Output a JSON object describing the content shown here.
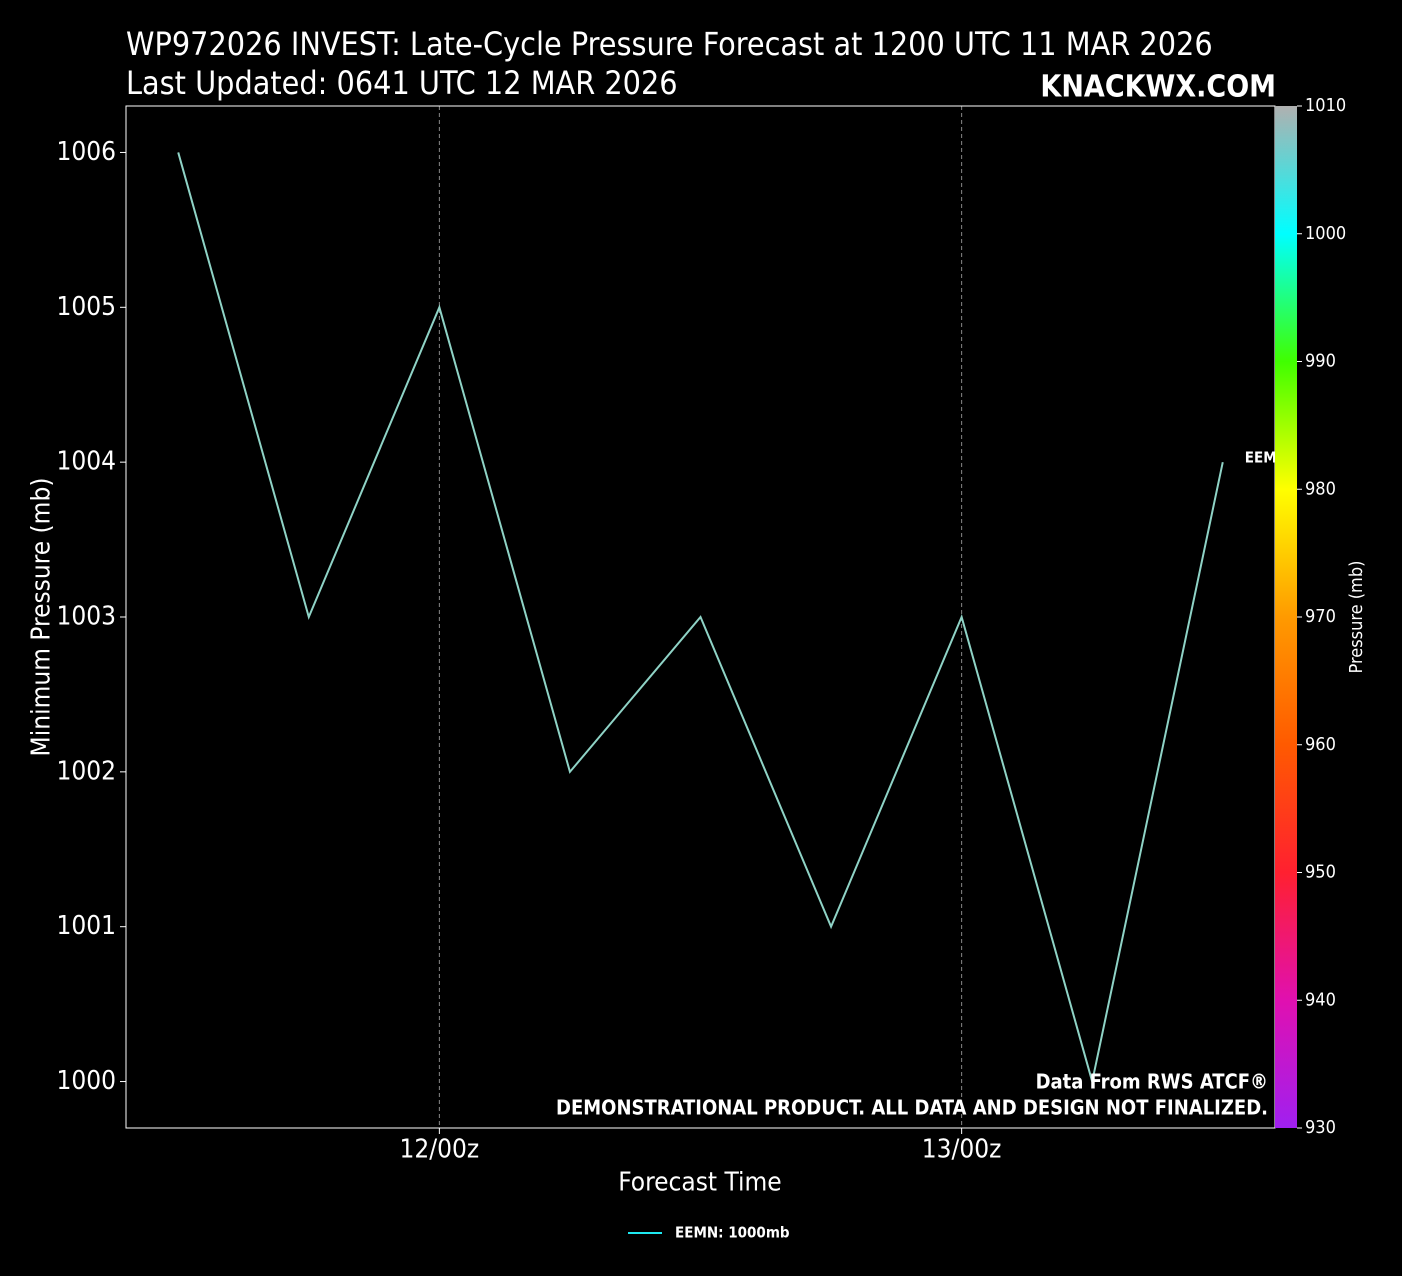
{
  "chart_data": {
    "type": "line",
    "title": "WP972026 INVEST: Late-Cycle Pressure Forecast at 1200 UTC 11 MAR 2026",
    "subtitle": "Last Updated: 0641 UTC 12 MAR 2026",
    "brand": "KNACKWX.COM",
    "x_label": "Forecast Time",
    "y_label": "Minimum Pressure (mb)",
    "x": [
      0,
      6,
      12,
      18,
      24,
      30,
      36,
      42,
      48
    ],
    "xlim": [
      -2.4,
      50.4
    ],
    "xticks": [
      {
        "value": 12,
        "label": "12/00z"
      },
      {
        "value": 36,
        "label": "13/00z"
      }
    ],
    "ylim": [
      999.7,
      1006.3
    ],
    "yticks": [
      1000,
      1001,
      1002,
      1003,
      1004,
      1005,
      1006
    ],
    "grid": "x",
    "series": [
      {
        "name": "EEMN",
        "legend_label": "EEMN: 1000mb",
        "color": "#8fd3c6",
        "legend_color": "#1ee8f0",
        "values": [
          1006,
          1003,
          1005,
          1002,
          1003,
          1001,
          1003,
          1000,
          1004
        ]
      }
    ],
    "colorbar": {
      "label": "Pressure (mb)",
      "lim": [
        930,
        1010
      ],
      "ticks": [
        930,
        940,
        950,
        960,
        970,
        980,
        990,
        1000,
        1010
      ],
      "colors": [
        "#a020f0",
        "#e010b0",
        "#ff2030",
        "#ff5a00",
        "#ff9a00",
        "#ffff00",
        "#40ff00",
        "#00ffff",
        "#b0b0b0"
      ]
    },
    "notes": [
      "Data From RWS ATCF®",
      "DEMONSTRATIONAL PRODUCT. ALL DATA AND DESIGN NOT FINALIZED."
    ]
  }
}
